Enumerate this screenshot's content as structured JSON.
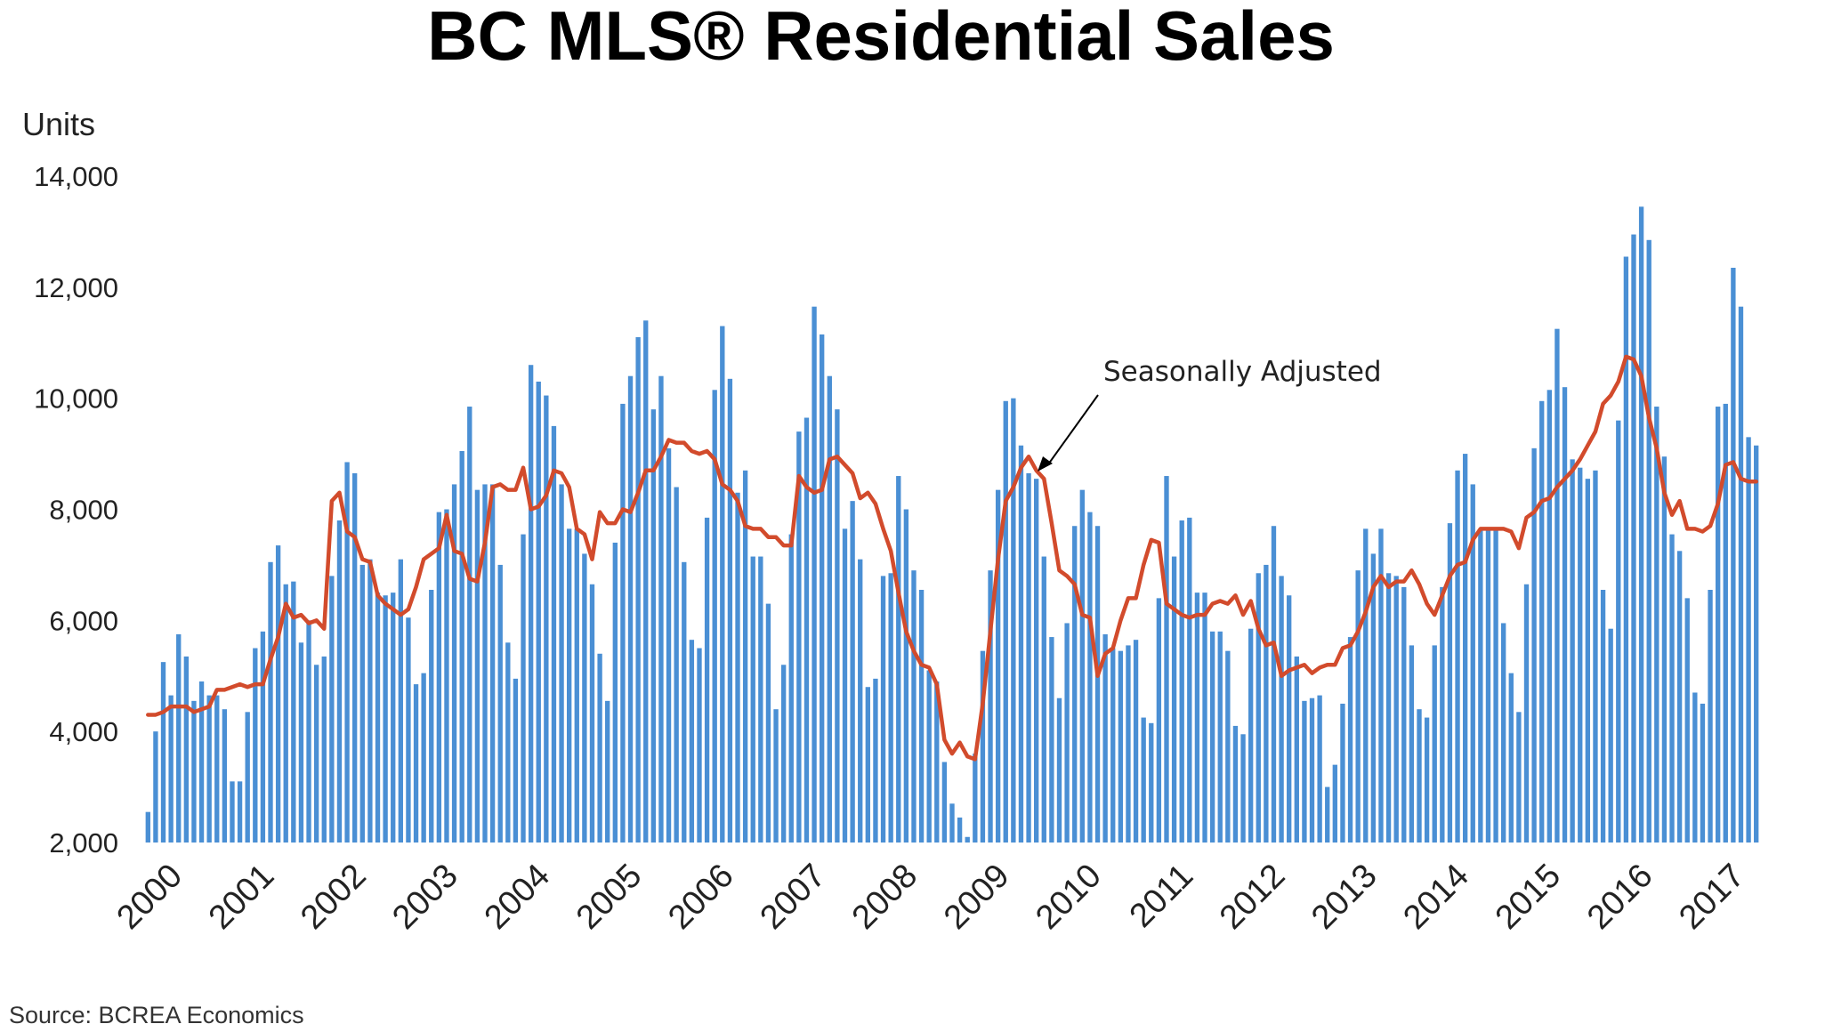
{
  "chart_data": {
    "type": "bar",
    "title": "BC MLS® Residential Sales",
    "ylabel": "Units",
    "source": "Source: BCREA Economics",
    "ylim": [
      2000,
      14000
    ],
    "yticks": [
      2000,
      4000,
      6000,
      8000,
      10000,
      12000,
      14000
    ],
    "ytick_labels": [
      "2,000",
      "4,000",
      "6,000",
      "8,000",
      "10,000",
      "12,000",
      "14,000"
    ],
    "xtick_labels": [
      "2000",
      "2001",
      "2002",
      "2003",
      "2004",
      "2005",
      "2006",
      "2007",
      "2008",
      "2009",
      "2010",
      "2011",
      "2012",
      "2013",
      "2014",
      "2015",
      "2016",
      "2017"
    ],
    "grid": false,
    "colors": {
      "bars": "#4a8fd4",
      "line": "#d24b2c"
    },
    "annotation": {
      "text": "Seasonally Adjusted"
    },
    "series": [
      {
        "type": "bar",
        "values": [
          2550,
          4000,
          5250,
          4650,
          5750,
          5350,
          4550,
          4900,
          4650,
          4650,
          4400,
          3100,
          3100,
          4350,
          5500,
          5800,
          7050,
          7350,
          6650,
          6700,
          5600,
          6000,
          5200,
          5350,
          6800,
          7800,
          8850,
          8650,
          7000,
          7100,
          6500,
          6450,
          6500,
          7100,
          6050,
          4850,
          5050,
          6550,
          7950,
          8000,
          8450,
          9050,
          9850,
          8350,
          8450,
          8450,
          7000,
          5600,
          4950,
          7550,
          10600,
          10300,
          10050,
          9500,
          8450,
          7650,
          7650,
          7200,
          6650,
          5400,
          4550,
          7400,
          9900,
          10400,
          11100,
          11400,
          9800,
          10400,
          9100,
          8400,
          7050,
          5650,
          5500,
          7850,
          10150,
          11300,
          10350,
          8300,
          8700,
          7150,
          7150,
          6300,
          4400,
          5200,
          7550,
          9400,
          9650,
          11650,
          11150,
          10400,
          9800,
          7650,
          8150,
          7100,
          4800,
          4950,
          6800,
          6850,
          8600,
          8000,
          6900,
          6550,
          5100,
          4900,
          3450,
          2700,
          2450,
          2100,
          3600,
          5450,
          6900,
          8350,
          9950,
          10000,
          9150,
          8650,
          8550,
          7150,
          5700,
          4600,
          5950,
          7700,
          8350,
          7950,
          7700,
          5750,
          5500,
          5450,
          5550,
          5650,
          4250,
          4150,
          6400,
          8600,
          7150,
          7800,
          7850,
          6500,
          6500,
          5800,
          5800,
          5450,
          4100,
          3950,
          5850,
          6850,
          7000,
          7700,
          6800,
          6450,
          5350,
          4550,
          4600,
          4650,
          3000,
          3400,
          4500,
          5700,
          6900,
          7650,
          7200,
          7650,
          6850,
          6800,
          6600,
          5550,
          4400,
          4250,
          5550,
          6600,
          7750,
          8700,
          9000,
          8450,
          7650,
          7650,
          7650,
          5950,
          5050,
          4350,
          6650,
          9100,
          9950,
          10150,
          11250,
          10200,
          8900,
          8750,
          8550,
          8700,
          6550,
          5850,
          9600,
          12550,
          12950,
          13450,
          12850,
          9850,
          8950,
          7550,
          7250,
          6400,
          4700,
          4500,
          6550,
          9850,
          9900,
          12350,
          11650,
          9300,
          9150
        ]
      },
      {
        "name": "Seasonally Adjusted",
        "type": "line",
        "values": [
          4300,
          4300,
          4350,
          4450,
          4450,
          4450,
          4350,
          4400,
          4450,
          4750,
          4750,
          4800,
          4850,
          4800,
          4850,
          4850,
          5300,
          5700,
          6300,
          6050,
          6100,
          5950,
          6000,
          5850,
          8150,
          8300,
          7600,
          7500,
          7100,
          7050,
          6450,
          6300,
          6200,
          6100,
          6200,
          6600,
          7100,
          7200,
          7300,
          7900,
          7250,
          7200,
          6750,
          6700,
          7400,
          8400,
          8450,
          8350,
          8350,
          8750,
          8000,
          8050,
          8250,
          8700,
          8650,
          8400,
          7650,
          7550,
          7100,
          7950,
          7750,
          7750,
          8000,
          7950,
          8300,
          8700,
          8700,
          8950,
          9250,
          9200,
          9200,
          9050,
          9000,
          9050,
          8900,
          8450,
          8350,
          8150,
          7700,
          7650,
          7650,
          7500,
          7500,
          7350,
          7350,
          8600,
          8400,
          8300,
          8350,
          8900,
          8950,
          8800,
          8650,
          8200,
          8300,
          8100,
          7650,
          7250,
          6500,
          5800,
          5450,
          5200,
          5150,
          4850,
          3850,
          3600,
          3800,
          3550,
          3500,
          4500,
          5800,
          7100,
          8150,
          8400,
          8750,
          8950,
          8700,
          8550,
          7750,
          6900,
          6800,
          6650,
          6100,
          6050,
          5000,
          5400,
          5500,
          6000,
          6400,
          6400,
          7000,
          7450,
          7400,
          6300,
          6200,
          6100,
          6050,
          6100,
          6100,
          6300,
          6350,
          6300,
          6450,
          6100,
          6350,
          5850,
          5550,
          5600,
          5000,
          5100,
          5150,
          5200,
          5050,
          5150,
          5200,
          5200,
          5500,
          5550,
          5800,
          6150,
          6600,
          6800,
          6600,
          6700,
          6700,
          6900,
          6650,
          6300,
          6100,
          6450,
          6800,
          7000,
          7050,
          7450,
          7650,
          7650,
          7650,
          7650,
          7600,
          7300,
          7850,
          7950,
          8150,
          8200,
          8400,
          8550,
          8700,
          8900,
          9150,
          9400,
          9900,
          10050,
          10300,
          10750,
          10700,
          10400,
          9650,
          9100,
          8300,
          7900,
          8150,
          7650,
          7650,
          7600,
          7700,
          8100,
          8800,
          8850,
          8550,
          8500,
          8500
        ]
      }
    ]
  }
}
